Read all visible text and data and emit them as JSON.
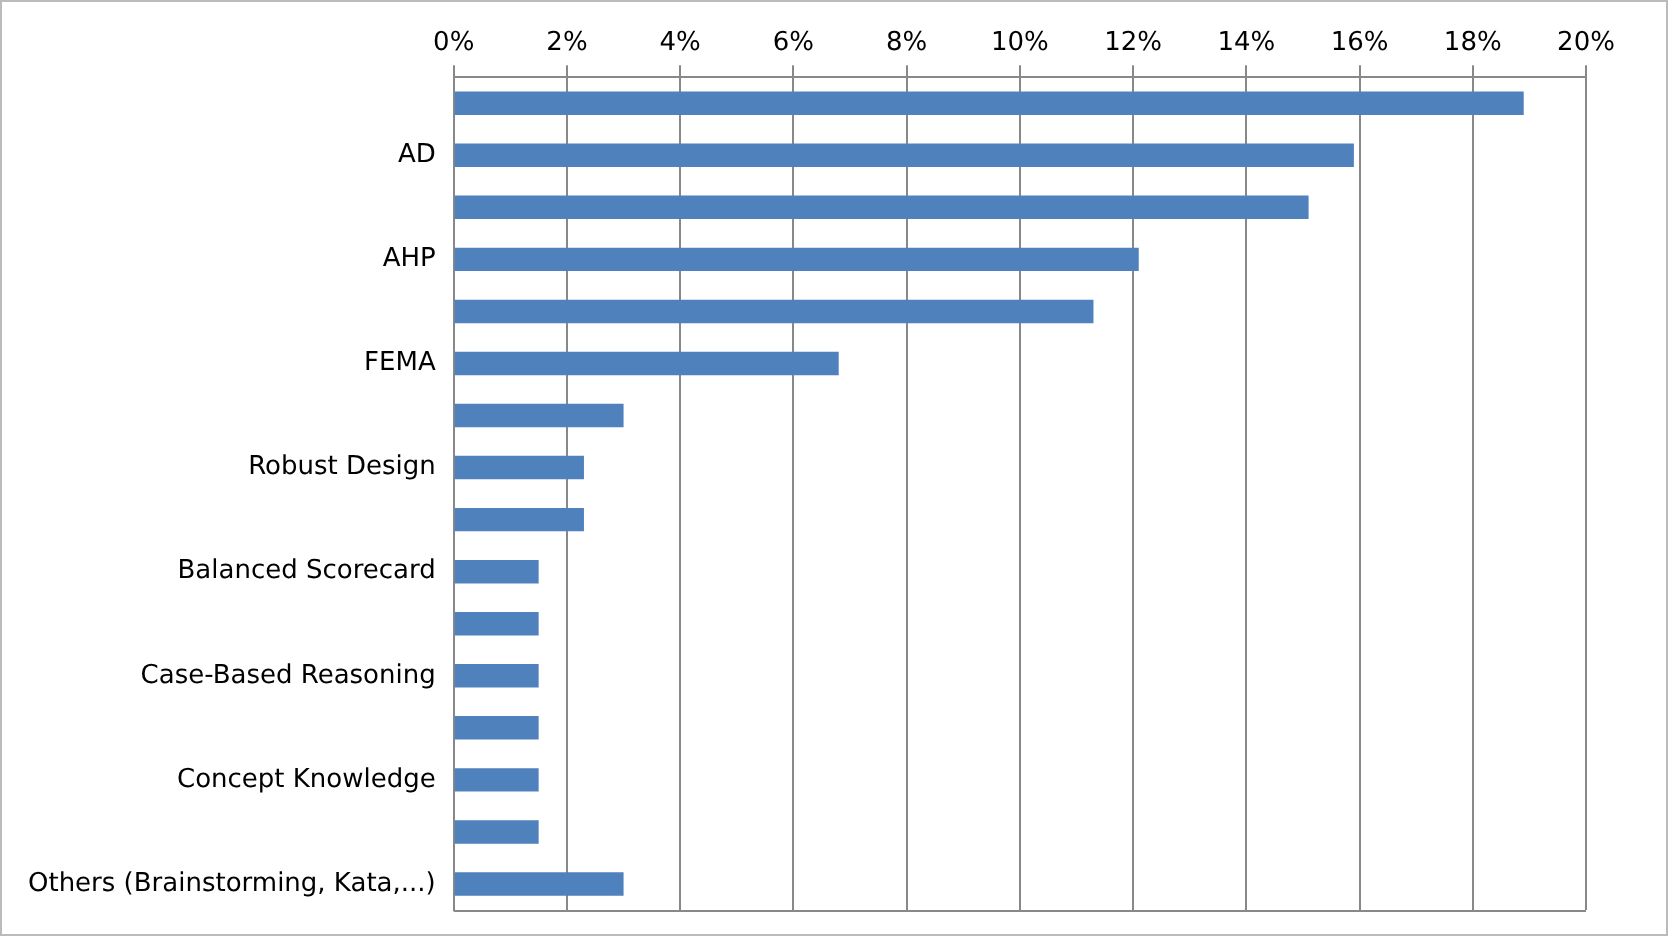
{
  "chart_data": {
    "type": "bar",
    "orientation": "horizontal",
    "categories": [
      null,
      "AD",
      null,
      "AHP",
      null,
      "FEMA",
      null,
      "Robust Design",
      null,
      "Balanced Scorecard",
      null,
      "Case-Based Reasoning",
      null,
      "Concept Knowledge",
      null,
      "Others (Brainstorming, Kata,...)"
    ],
    "values": [
      18.9,
      15.9,
      15.1,
      12.1,
      11.3,
      6.8,
      3.0,
      2.3,
      2.3,
      1.5,
      1.5,
      1.5,
      1.5,
      1.5,
      1.5,
      3.0
    ],
    "color": "#4f81bd",
    "xlim": [
      0,
      20
    ],
    "xticks": [
      {
        "value": 0,
        "label": "0%"
      },
      {
        "value": 2,
        "label": "2%"
      },
      {
        "value": 4,
        "label": "4%"
      },
      {
        "value": 6,
        "label": "6%"
      },
      {
        "value": 8,
        "label": "8%"
      },
      {
        "value": 10,
        "label": "10%"
      },
      {
        "value": 12,
        "label": "12%"
      },
      {
        "value": 14,
        "label": "14%"
      },
      {
        "value": 16,
        "label": "16%"
      },
      {
        "value": 18,
        "label": "18%"
      },
      {
        "value": 20,
        "label": "20%"
      }
    ],
    "grid": "x",
    "legend": false
  }
}
